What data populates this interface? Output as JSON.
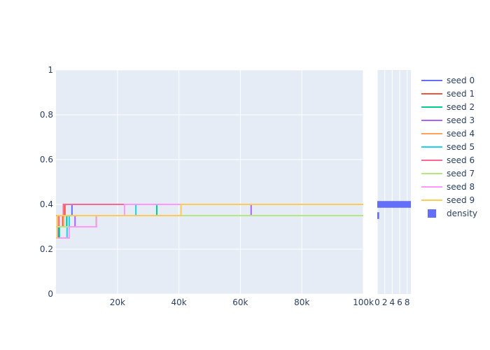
{
  "chart_data": [
    {
      "type": "line",
      "step": "hv",
      "xlim": [
        0,
        100000
      ],
      "ylim": [
        0,
        1
      ],
      "x_ticks": [
        20000,
        40000,
        60000,
        80000,
        100000
      ],
      "x_tick_labels": [
        "20k",
        "40k",
        "60k",
        "80k",
        "100k"
      ],
      "y_ticks": [
        0,
        0.2,
        0.4,
        0.6,
        0.8,
        1
      ],
      "y_tick_labels": [
        "0",
        "0.2",
        "0.4",
        "0.6",
        "0.8",
        "1"
      ],
      "grid": true,
      "legend": "right",
      "series": [
        {
          "name": "seed 0",
          "color": "#636efa",
          "x": [
            0,
            800,
            3500,
            4800,
            5200,
            100000
          ],
          "y": [
            0.25,
            0.3,
            0.35,
            0.35,
            0.4,
            0.4
          ]
        },
        {
          "name": "seed 1",
          "color": "#ef553b",
          "x": [
            0,
            600,
            2200,
            2900,
            31500,
            100000
          ],
          "y": [
            0.3,
            0.3,
            0.35,
            0.4,
            0.4,
            0.4
          ]
        },
        {
          "name": "seed 2",
          "color": "#00cc96",
          "x": [
            0,
            1100,
            3500,
            32800,
            100000
          ],
          "y": [
            0.25,
            0.3,
            0.35,
            0.4,
            0.4
          ]
        },
        {
          "name": "seed 3",
          "color": "#ab63fa",
          "x": [
            0,
            700,
            6200,
            63500,
            100000
          ],
          "y": [
            0.3,
            0.3,
            0.35,
            0.4,
            0.4
          ]
        },
        {
          "name": "seed 4",
          "color": "#ffa15a",
          "x": [
            0,
            600,
            2500,
            100000
          ],
          "y": [
            0.35,
            0.3,
            0.35,
            0.35
          ]
        },
        {
          "name": "seed 5",
          "color": "#19d3f3",
          "x": [
            0,
            3600,
            4300,
            26000,
            100000
          ],
          "y": [
            0.25,
            0.3,
            0.35,
            0.4,
            0.4
          ]
        },
        {
          "name": "seed 6",
          "color": "#ff6692",
          "x": [
            0,
            1000,
            2400,
            22000,
            100000
          ],
          "y": [
            0.3,
            0.35,
            0.4,
            0.4,
            0.4
          ]
        },
        {
          "name": "seed 7",
          "color": "#b6e880",
          "x": [
            0,
            1200,
            13000,
            100000
          ],
          "y": [
            0.3,
            0.3,
            0.35,
            0.35
          ]
        },
        {
          "name": "seed 8",
          "color": "#ff97ff",
          "x": [
            0,
            4300,
            13200,
            22300,
            100000
          ],
          "y": [
            0.25,
            0.3,
            0.35,
            0.4,
            0.4
          ]
        },
        {
          "name": "seed 9",
          "color": "#fecb52",
          "x": [
            0,
            400,
            1400,
            40700,
            100000
          ],
          "y": [
            0.25,
            0.35,
            0.35,
            0.4,
            0.4
          ]
        }
      ]
    },
    {
      "type": "bar",
      "orientation": "h",
      "xlim": [
        0,
        9
      ],
      "x_ticks": [
        0,
        2,
        4,
        6,
        8
      ],
      "x_tick_labels": [
        "0",
        "2",
        "4",
        "6",
        "8"
      ],
      "ylim": [
        0,
        1
      ],
      "bar_width": 0.03,
      "series": [
        {
          "name": "density",
          "color": "#636efa",
          "categories": [
            0.35,
            0.4
          ],
          "values": [
            0.5,
            9
          ]
        }
      ]
    }
  ]
}
